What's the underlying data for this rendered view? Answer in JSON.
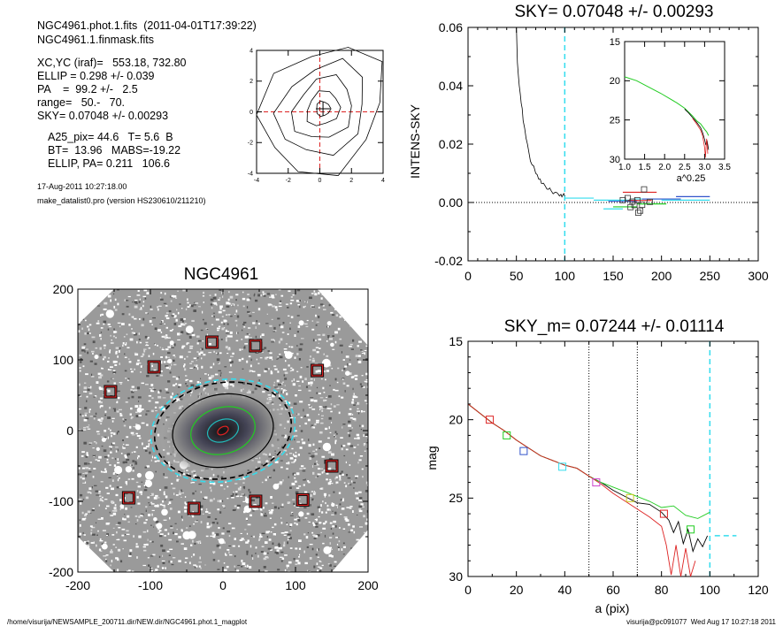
{
  "header": {
    "file_line": "NGC4961.phot.1.fits  (2011-04-01T17:39:22)",
    "mask_line": "NGC4961.1.finmask.fits",
    "params": [
      "XC,YC (iraf)=   553.18, 732.80",
      "ELLIP = 0.298 +/- 0.039",
      "PA    =  99.2 +/-   2.5",
      "range=   50.-   70.",
      "SKY= 0.07048 +/- 0.00293"
    ],
    "props": [
      "A25_pix= 44.6   T= 5.6  B",
      "BT=  13.96   MABS=-19.22",
      "ELLIP, PA= 0.211   106.6"
    ],
    "date_line": "17-Aug-2011 10:27:18.00",
    "program_line": "make_datalist0.pro (version HS230610/211210)"
  },
  "footer": {
    "path": "/home/visurija/NEWSAMPLE_200711.dir/NEW.dir/NGC4961.phot.1_magplot",
    "user": "visurija@pc091077  Wed Aug 17 10:27:18 2011"
  },
  "colors": {
    "sky_line": "#33ddee",
    "red": "#dd2222",
    "green": "#22cc22",
    "blue": "#3355cc",
    "black": "#000000",
    "box_dark": "#7a0000"
  },
  "chart_data": [
    {
      "id": "centering",
      "type": "contour",
      "title": "",
      "xlim": [
        -4,
        4
      ],
      "ylim": [
        -4,
        4
      ],
      "x_ticks": [
        "-4",
        "-2",
        "0",
        "2",
        "4"
      ],
      "y_ticks": [
        "-4",
        "-2",
        "0",
        "2",
        "4"
      ],
      "center": [
        0.2,
        0.2
      ]
    },
    {
      "id": "sky_profile",
      "type": "line",
      "title": "SKY= 0.07048 +/- 0.00293",
      "xlabel": "",
      "ylabel": "INTENS-SKY",
      "xlim": [
        0,
        300
      ],
      "ylim": [
        -0.02,
        0.06
      ],
      "x_ticks": [
        "0",
        "50",
        "100",
        "150",
        "200",
        "250",
        "300"
      ],
      "y_ticks": [
        "-0.02",
        "0.00",
        "0.02",
        "0.04",
        "0.06"
      ],
      "zero_line": 0,
      "sky_radius": 100,
      "profile": {
        "x": [
          50,
          51,
          53,
          55,
          57,
          60,
          63,
          66,
          70,
          73,
          76,
          80,
          83,
          86,
          90,
          93,
          96,
          98,
          100
        ],
        "y": [
          0.06,
          0.048,
          0.04,
          0.034,
          0.028,
          0.022,
          0.017,
          0.013,
          0.01,
          0.008,
          0.0065,
          0.0055,
          0.0045,
          0.004,
          0.0035,
          0.003,
          0.0028,
          0.0025,
          0.0022
        ]
      },
      "sky_boxes": {
        "x": [
          160,
          165,
          168,
          170,
          172,
          175,
          176,
          178,
          180,
          182,
          188
        ],
        "y": [
          0.0008,
          0.0015,
          -0.0016,
          0.0003,
          -0.0009,
          0.0008,
          -0.0035,
          -0.0028,
          -0.0008,
          0.0045,
          0.0002
        ]
      },
      "inset": {
        "xlabel": "a^0.25",
        "xlim": [
          1.0,
          3.5
        ],
        "ylim": [
          30,
          15
        ],
        "x_ticks": [
          "1.0",
          "1.5",
          "2.0",
          "2.5",
          "3.0",
          "3.5"
        ],
        "y_ticks": [
          "15",
          "20",
          "25",
          "30"
        ],
        "green": {
          "x": [
            1.0,
            1.3,
            1.6,
            1.9,
            2.1,
            2.3,
            2.5,
            2.6,
            2.7,
            2.8,
            2.9,
            3.0,
            3.05,
            3.1
          ],
          "y": [
            19.5,
            20.0,
            20.8,
            21.6,
            22.2,
            22.8,
            23.5,
            24.0,
            24.5,
            25.1,
            25.5,
            26.2,
            26.5,
            27.0
          ]
        },
        "black": {
          "x": [
            2.5,
            2.6,
            2.7,
            2.8,
            2.9,
            2.95,
            3.0,
            3.03,
            3.06,
            3.1
          ],
          "y": [
            23.6,
            24.1,
            24.7,
            25.3,
            26.0,
            26.6,
            27.5,
            28.2,
            27.6,
            28.8
          ]
        },
        "red": {
          "x": [
            2.7,
            2.8,
            2.9,
            2.95,
            3.0,
            3.02,
            3.05,
            3.08
          ],
          "y": [
            24.8,
            25.5,
            26.3,
            27.0,
            28.5,
            29.8,
            27.4,
            29.3
          ]
        }
      }
    },
    {
      "id": "image",
      "type": "image",
      "title": "NGC4961",
      "xlim": [
        -200,
        200
      ],
      "ylim": [
        -200,
        200
      ],
      "x_ticks": [
        "-200",
        "-100",
        "0",
        "100",
        "200"
      ],
      "y_ticks": [
        "-200",
        "-100",
        "0",
        "100",
        "200"
      ],
      "sky_boxes": [
        [
          -15,
          125
        ],
        [
          45,
          120
        ],
        [
          -95,
          90
        ],
        [
          130,
          85
        ],
        [
          -155,
          55
        ],
        [
          150,
          -50
        ],
        [
          -130,
          -95
        ],
        [
          -40,
          -110
        ],
        [
          45,
          -100
        ],
        [
          110,
          -98
        ]
      ],
      "ellipses": [
        {
          "a": 100,
          "b": 70,
          "angle": -10,
          "color": "#33ddee",
          "dashed": true
        },
        {
          "a": 95,
          "b": 66,
          "angle": -10,
          "color": "#000000",
          "dashed": true
        },
        {
          "a": 70,
          "b": 50,
          "angle": -10,
          "color": "#000000",
          "dashed": false
        },
        {
          "a": 45,
          "b": 32,
          "angle": -15,
          "color": "#22cc22",
          "dashed": false
        },
        {
          "a": 22,
          "b": 15,
          "angle": -20,
          "color": "#22bbbb",
          "dashed": false
        },
        {
          "a": 8,
          "b": 5,
          "angle": -30,
          "color": "#dd2222",
          "dashed": false
        }
      ]
    },
    {
      "id": "mag_profile",
      "type": "line",
      "title": "SKY_m=  0.07244 +/- 0.01114",
      "xlabel": "a (pix)",
      "ylabel": "mag",
      "xlim": [
        0,
        120
      ],
      "ylim": [
        30,
        15
      ],
      "x_ticks": [
        "0",
        "20",
        "40",
        "60",
        "80",
        "100",
        "120"
      ],
      "y_ticks": [
        "15",
        "20",
        "25",
        "30"
      ],
      "vlines_dotted": [
        50,
        70
      ],
      "sky_radius": 100,
      "sky_mag": 27.4,
      "series": [
        {
          "color": "#000000",
          "x": [
            0,
            5,
            10,
            15,
            20,
            25,
            30,
            35,
            40,
            45,
            50,
            55,
            60,
            65,
            70,
            75,
            80,
            83,
            85,
            87,
            89,
            91,
            93,
            95,
            97,
            99
          ],
          "y": [
            19.0,
            19.6,
            20.2,
            20.7,
            21.3,
            21.8,
            22.3,
            22.6,
            22.9,
            23.1,
            23.6,
            24.0,
            24.5,
            24.9,
            25.3,
            25.4,
            25.9,
            26.4,
            27.2,
            26.5,
            27.9,
            27.0,
            28.4,
            27.6,
            28.1,
            27.4
          ]
        },
        {
          "color": "#22cc22",
          "x": [
            0,
            5,
            10,
            15,
            20,
            25,
            30,
            35,
            40,
            45,
            50,
            55,
            60,
            65,
            70,
            75,
            80,
            85,
            90,
            95,
            100
          ],
          "y": [
            19.0,
            19.6,
            20.2,
            20.7,
            21.3,
            21.8,
            22.3,
            22.6,
            22.9,
            23.1,
            23.6,
            24.0,
            24.3,
            24.6,
            24.9,
            25.2,
            25.6,
            25.5,
            26.1,
            26.3,
            25.9
          ]
        },
        {
          "color": "#dd2222",
          "x": [
            0,
            5,
            10,
            15,
            20,
            25,
            30,
            35,
            40,
            45,
            50,
            55,
            60,
            65,
            70,
            75,
            80,
            82,
            84,
            86,
            88,
            90,
            92,
            94
          ],
          "y": [
            19.0,
            19.6,
            20.2,
            20.7,
            21.3,
            21.8,
            22.3,
            22.6,
            22.9,
            23.1,
            23.6,
            24.1,
            24.7,
            25.2,
            25.7,
            26.2,
            26.8,
            28.0,
            29.9,
            28.0,
            30.0,
            28.2,
            30.0,
            29.0
          ]
        }
      ],
      "markers": [
        {
          "x": 9,
          "y": 20.0,
          "color": "#dd2222"
        },
        {
          "x": 16,
          "y": 21.0,
          "color": "#22cc22"
        },
        {
          "x": 23,
          "y": 22.0,
          "color": "#3355cc"
        },
        {
          "x": 39,
          "y": 23.0,
          "color": "#33ddee"
        },
        {
          "x": 53,
          "y": 24.0,
          "color": "#cc44cc"
        },
        {
          "x": 67,
          "y": 25.0,
          "color": "#cccc22"
        },
        {
          "x": 81,
          "y": 26.0,
          "color": "#dd2222"
        },
        {
          "x": 92,
          "y": 27.0,
          "color": "#22cc22"
        }
      ]
    }
  ]
}
